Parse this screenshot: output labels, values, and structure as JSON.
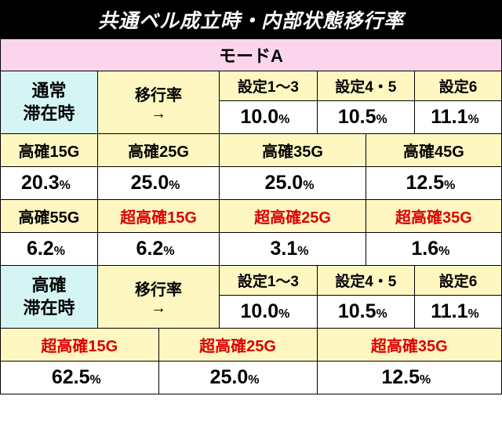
{
  "title": "共通ベル成立時・内部状態移行率",
  "mode": "モードA",
  "section1": {
    "state_label_l1": "通常",
    "state_label_l2": "滞在時",
    "rate_label_l1": "移行率",
    "rate_label_l2": "→",
    "settings": [
      "設定1〜3",
      "設定4・5",
      "設定6"
    ],
    "values": [
      "10.0",
      "10.5",
      "11.1"
    ]
  },
  "row2": {
    "headers": [
      "高確15G",
      "高確25G",
      "高確35G",
      "高確45G"
    ],
    "values": [
      "20.3",
      "25.0",
      "25.0",
      "12.5"
    ]
  },
  "row3": {
    "headers": [
      "高確55G",
      "超高確15G",
      "超高確25G",
      "超高確35G"
    ],
    "is_red": [
      false,
      true,
      true,
      true
    ],
    "values": [
      "6.2",
      "6.2",
      "3.1",
      "1.6"
    ]
  },
  "section2": {
    "state_label_l1": "高確",
    "state_label_l2": "滞在時",
    "rate_label_l1": "移行率",
    "rate_label_l2": "→",
    "settings": [
      "設定1〜3",
      "設定4・5",
      "設定6"
    ],
    "values": [
      "10.0",
      "10.5",
      "11.1"
    ]
  },
  "row4": {
    "headers": [
      "超高確15G",
      "超高確25G",
      "超高確35G"
    ],
    "values": [
      "62.5",
      "25.0",
      "12.5"
    ]
  },
  "pct": "%",
  "colors": {
    "title_bg": "#000000",
    "title_fg": "#ffffff",
    "mode_bg": "#fbd5ec",
    "state_bg": "#d5f5f5",
    "header_bg": "#fff7c2",
    "red_text": "#d00000",
    "value_bg": "#ffffff"
  }
}
